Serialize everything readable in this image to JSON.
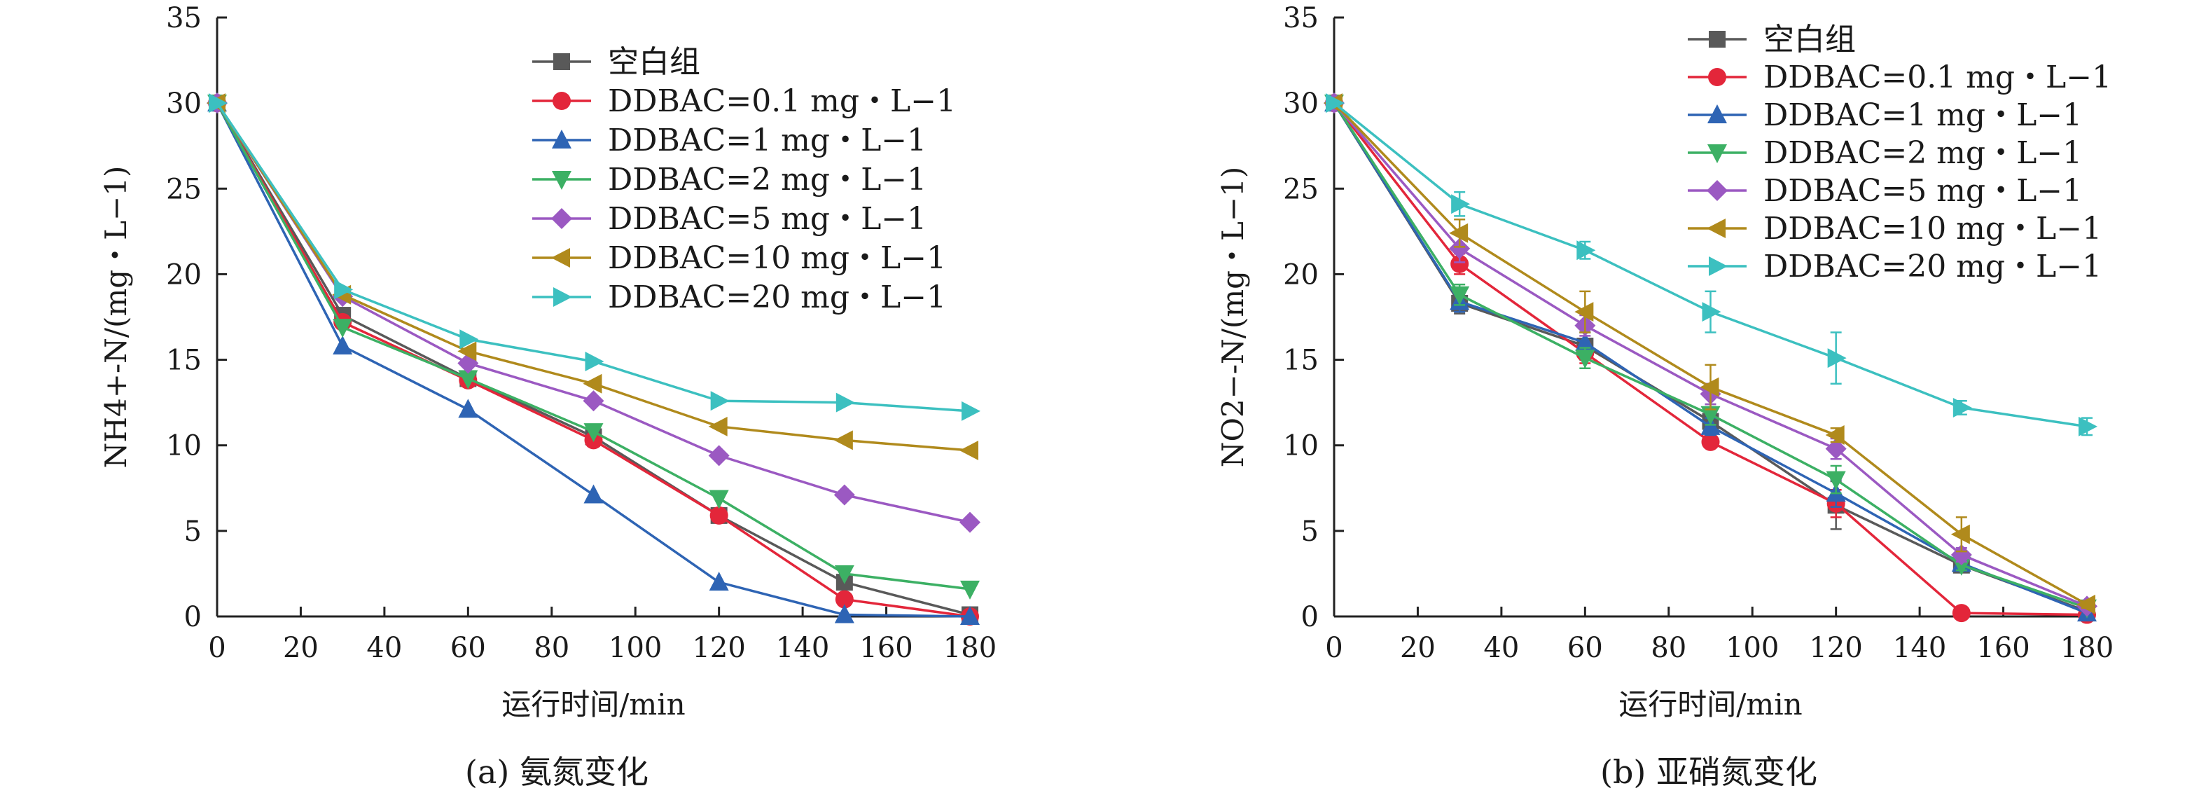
{
  "chart_data": [
    {
      "type": "line",
      "caption": "(a) 氨氮变化",
      "xlabel": "运行时间/min",
      "ylabel": "NH4+-N/(mg・L−1)",
      "xlim": [
        0,
        180
      ],
      "ylim": [
        0,
        35
      ],
      "xticks": [
        0,
        20,
        40,
        60,
        80,
        100,
        120,
        140,
        160,
        180
      ],
      "yticks": [
        0,
        5,
        10,
        15,
        20,
        25,
        30,
        35
      ],
      "legend_position": "top-right",
      "grid": false,
      "x": [
        0,
        30,
        60,
        90,
        120,
        150,
        180
      ],
      "series": [
        {
          "name": "空白组",
          "color": "#595959",
          "marker": "square",
          "values": [
            30,
            17.6,
            13.9,
            10.5,
            5.9,
            2.0,
            0.1
          ]
        },
        {
          "name": "DDBAC=0.1 mg・L−1",
          "color": "#e3263a",
          "marker": "circle",
          "values": [
            30,
            17.2,
            13.8,
            10.3,
            5.9,
            1.0,
            0.0
          ]
        },
        {
          "name": "DDBAC=1 mg・L−1",
          "color": "#2e64b4",
          "marker": "triangle-up",
          "values": [
            30,
            15.8,
            12.1,
            7.1,
            2.0,
            0.1,
            0.0
          ]
        },
        {
          "name": "DDBAC=2 mg・L−1",
          "color": "#3cb064",
          "marker": "triangle-down",
          "values": [
            30,
            16.9,
            13.9,
            10.8,
            6.9,
            2.5,
            1.6
          ]
        },
        {
          "name": "DDBAC=5 mg・L−1",
          "color": "#9b59c2",
          "marker": "diamond",
          "values": [
            30,
            18.7,
            14.8,
            12.6,
            9.4,
            7.1,
            5.5
          ]
        },
        {
          "name": "DDBAC=10 mg・L−1",
          "color": "#b08a1c",
          "marker": "triangle-left",
          "values": [
            30,
            18.8,
            15.5,
            13.6,
            11.1,
            10.3,
            9.7
          ]
        },
        {
          "name": "DDBAC=20 mg・L−1",
          "color": "#3cc0c0",
          "marker": "triangle-right",
          "values": [
            30,
            19.1,
            16.2,
            14.9,
            12.6,
            12.5,
            12.0
          ]
        }
      ]
    },
    {
      "type": "line",
      "caption": "(b) 亚硝氮变化",
      "xlabel": "运行时间/min",
      "ylabel": "NO2−-N/(mg・L−1)",
      "xlim": [
        0,
        180
      ],
      "ylim": [
        0,
        35
      ],
      "xticks": [
        0,
        20,
        40,
        60,
        80,
        100,
        120,
        140,
        160,
        180
      ],
      "yticks": [
        0,
        5,
        10,
        15,
        20,
        25,
        30,
        35
      ],
      "legend_position": "top-right",
      "grid": false,
      "x": [
        0,
        30,
        60,
        90,
        120,
        150,
        180
      ],
      "series": [
        {
          "name": "空白组",
          "color": "#595959",
          "marker": "square",
          "values": [
            30,
            18.3,
            15.8,
            11.4,
            6.5,
            3.0,
            0.3
          ],
          "errors": [
            0,
            0.6,
            0.8,
            0.6,
            1.4,
            0.3,
            0.2
          ]
        },
        {
          "name": "DDBAC=0.1 mg・L−1",
          "color": "#e3263a",
          "marker": "circle",
          "values": [
            30,
            20.6,
            15.4,
            10.2,
            6.6,
            0.2,
            0.1
          ],
          "errors": [
            0,
            0.6,
            0.6,
            0.3,
            0.8,
            0.1,
            0.1
          ]
        },
        {
          "name": "DDBAC=1 mg・L−1",
          "color": "#2e64b4",
          "marker": "triangle-up",
          "values": [
            30,
            18.4,
            16.0,
            11.1,
            7.2,
            3.1,
            0.2
          ],
          "errors": [
            0,
            0.6,
            0.6,
            0.5,
            0.8,
            0.3,
            0.1
          ]
        },
        {
          "name": "DDBAC=2 mg・L−1",
          "color": "#3cb064",
          "marker": "triangle-down",
          "values": [
            30,
            18.8,
            15.1,
            11.8,
            8.0,
            3.0,
            0.5
          ],
          "errors": [
            0,
            0.6,
            0.6,
            0.6,
            0.8,
            0.3,
            0.1
          ]
        },
        {
          "name": "DDBAC=5 mg・L−1",
          "color": "#9b59c2",
          "marker": "diamond",
          "values": [
            30,
            21.5,
            17.0,
            13.0,
            9.8,
            3.6,
            0.6
          ],
          "errors": [
            0,
            0.8,
            0.6,
            0.6,
            0.6,
            0.4,
            0.2
          ]
        },
        {
          "name": "DDBAC=10 mg・L−1",
          "color": "#b08a1c",
          "marker": "triangle-left",
          "values": [
            30,
            22.4,
            17.8,
            13.4,
            10.6,
            4.8,
            0.7
          ],
          "errors": [
            0,
            0.8,
            1.2,
            1.3,
            0.4,
            1.0,
            0.2
          ]
        },
        {
          "name": "DDBAC=20 mg・L−1",
          "color": "#3cc0c0",
          "marker": "triangle-right",
          "values": [
            30,
            24.1,
            21.4,
            17.8,
            15.1,
            12.2,
            11.1
          ],
          "errors": [
            0,
            0.7,
            0.5,
            1.2,
            1.5,
            0.4,
            0.5
          ]
        }
      ]
    }
  ]
}
